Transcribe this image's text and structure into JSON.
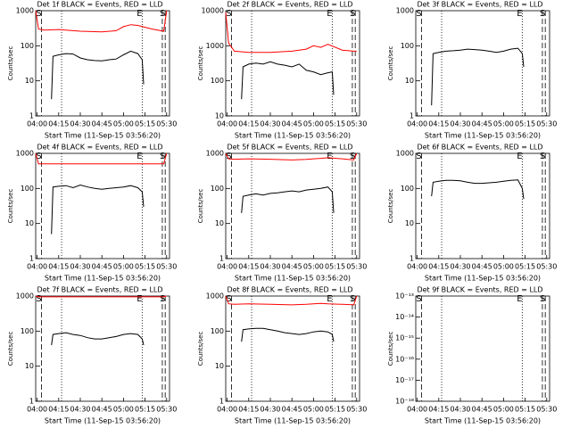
{
  "chart_data": [
    {
      "type": "line",
      "title": "Det 1f BLACK = Events, RED = LLD",
      "xlabel": "Start Time (11-Sep-15 03:56:20)",
      "ylabel": "Counts/sec",
      "log_y": true,
      "xlim": [
        "03:59",
        "05:32"
      ],
      "xticks": [
        "04:00",
        "04:15",
        "04:30",
        "04:45",
        "05:00",
        "05:15",
        "05:30"
      ],
      "ylim": [
        1,
        1000
      ],
      "yticks": [
        1,
        10,
        100,
        1000
      ],
      "vlines": [
        {
          "x": "04:03",
          "style": "dashed",
          "label": "S"
        },
        {
          "x": "04:17",
          "style": "dotted"
        },
        {
          "x": "05:13",
          "style": "dotted",
          "label": "E"
        },
        {
          "x": "05:27",
          "style": "dashed"
        },
        {
          "x": "05:29",
          "style": "dashed",
          "label": "S"
        }
      ],
      "series": [
        {
          "color": "#000000",
          "x": [
            "04:10",
            "04:11",
            "04:15",
            "04:20",
            "04:25",
            "04:30",
            "04:35",
            "04:40",
            "04:45",
            "04:50",
            "04:55",
            "05:00",
            "05:05",
            "05:10",
            "05:13",
            "05:14"
          ],
          "values": [
            3,
            50,
            55,
            60,
            58,
            45,
            40,
            38,
            37,
            40,
            42,
            55,
            70,
            60,
            40,
            8
          ]
        },
        {
          "color": "#ff0000",
          "x": [
            "03:59",
            "04:01",
            "04:05",
            "04:15",
            "04:30",
            "04:45",
            "04:55",
            "05:00",
            "05:05",
            "05:10",
            "05:20",
            "05:28",
            "05:30"
          ],
          "values": [
            1000,
            300,
            280,
            290,
            260,
            250,
            270,
            350,
            400,
            380,
            300,
            260,
            1000
          ]
        }
      ]
    },
    {
      "type": "line",
      "title": "Det 2f BLACK = Events, RED = LLD",
      "xlabel": "Start Time (11-Sep-15 03:56:20)",
      "ylabel": "Counts/sec",
      "log_y": true,
      "xlim": [
        "03:59",
        "05:32"
      ],
      "xticks": [
        "04:00",
        "04:15",
        "04:30",
        "04:45",
        "05:00",
        "05:15",
        "05:30"
      ],
      "ylim": [
        10,
        10000
      ],
      "yticks": [
        10,
        100,
        1000,
        10000
      ],
      "vlines": [
        {
          "x": "04:03",
          "style": "dashed",
          "label": "S"
        },
        {
          "x": "04:17",
          "style": "dotted"
        },
        {
          "x": "05:13",
          "style": "dotted",
          "label": "E"
        },
        {
          "x": "05:27",
          "style": "dashed"
        },
        {
          "x": "05:29",
          "style": "dashed",
          "label": "S"
        }
      ],
      "series": [
        {
          "color": "#000000",
          "x": [
            "04:10",
            "04:11",
            "04:15",
            "04:20",
            "04:25",
            "04:30",
            "04:35",
            "04:40",
            "04:45",
            "04:50",
            "04:55",
            "05:00",
            "05:05",
            "05:10",
            "05:13",
            "05:14"
          ],
          "values": [
            30,
            250,
            300,
            320,
            300,
            350,
            300,
            280,
            250,
            300,
            200,
            180,
            150,
            170,
            180,
            40
          ]
        },
        {
          "color": "#ff0000",
          "x": [
            "03:59",
            "04:01",
            "04:05",
            "04:15",
            "04:30",
            "04:45",
            "04:55",
            "05:00",
            "05:05",
            "05:10",
            "05:20",
            "05:28",
            "05:30"
          ],
          "values": [
            9000,
            1200,
            700,
            650,
            650,
            700,
            800,
            1000,
            900,
            1100,
            750,
            700,
            700
          ]
        }
      ]
    },
    {
      "type": "line",
      "title": "Det 3f BLACK = Events, RED = LLD",
      "xlabel": "Start Time (11-Sep-15 03:56:20)",
      "ylabel": "Counts/sec",
      "log_y": true,
      "xlim": [
        "03:59",
        "05:32"
      ],
      "xticks": [
        "04:00",
        "04:15",
        "04:30",
        "04:45",
        "05:00",
        "05:15",
        "05:30"
      ],
      "ylim": [
        1,
        1000
      ],
      "yticks": [
        1,
        10,
        100,
        1000
      ],
      "vlines": [
        {
          "x": "04:03",
          "style": "dashed",
          "label": "S"
        },
        {
          "x": "04:17",
          "style": "dotted"
        },
        {
          "x": "05:13",
          "style": "dotted",
          "label": "E"
        },
        {
          "x": "05:27",
          "style": "dashed"
        },
        {
          "x": "05:29",
          "style": "dashed",
          "label": "S"
        }
      ],
      "series": [
        {
          "color": "#000000",
          "x": [
            "04:10",
            "04:11",
            "04:15",
            "04:20",
            "04:25",
            "04:30",
            "04:35",
            "04:40",
            "04:45",
            "04:50",
            "04:55",
            "05:00",
            "05:05",
            "05:10",
            "05:13",
            "05:14"
          ],
          "values": [
            2,
            60,
            65,
            70,
            72,
            75,
            80,
            78,
            75,
            70,
            65,
            70,
            80,
            85,
            60,
            25
          ]
        }
      ]
    },
    {
      "type": "line",
      "title": "Det 4f BLACK = Events, RED = LLD",
      "xlabel": "Start Time (11-Sep-15 03:56:20)",
      "ylabel": "Counts/sec",
      "log_y": true,
      "xlim": [
        "03:59",
        "05:32"
      ],
      "xticks": [
        "04:00",
        "04:15",
        "04:30",
        "04:45",
        "05:00",
        "05:15",
        "05:30"
      ],
      "ylim": [
        1,
        1000
      ],
      "yticks": [
        1,
        10,
        100,
        1000
      ],
      "vlines": [
        {
          "x": "04:03",
          "style": "dashed",
          "label": "S"
        },
        {
          "x": "04:17",
          "style": "dotted"
        },
        {
          "x": "05:13",
          "style": "dotted",
          "label": "E"
        },
        {
          "x": "05:27",
          "style": "dashed"
        },
        {
          "x": "05:29",
          "style": "dashed",
          "label": "S"
        }
      ],
      "series": [
        {
          "color": "#000000",
          "x": [
            "04:10",
            "04:11",
            "04:15",
            "04:20",
            "04:25",
            "04:30",
            "04:35",
            "04:40",
            "04:45",
            "04:50",
            "04:55",
            "05:00",
            "05:05",
            "05:10",
            "05:13",
            "05:14"
          ],
          "values": [
            5,
            110,
            115,
            120,
            105,
            125,
            110,
            100,
            95,
            100,
            105,
            110,
            120,
            105,
            80,
            30
          ]
        },
        {
          "color": "#ff0000",
          "x": [
            "03:59",
            "04:01",
            "04:05",
            "04:15",
            "04:30",
            "04:45",
            "04:55",
            "05:00",
            "05:05",
            "05:10",
            "05:20",
            "05:28",
            "05:30"
          ],
          "values": [
            1000,
            500,
            500,
            500,
            500,
            500,
            500,
            500,
            500,
            500,
            500,
            500,
            1000
          ]
        }
      ]
    },
    {
      "type": "line",
      "title": "Det 5f BLACK = Events, RED = LLD",
      "xlabel": "Start Time (11-Sep-15 03:56:20)",
      "ylabel": "Counts/sec",
      "log_y": true,
      "xlim": [
        "03:59",
        "05:32"
      ],
      "xticks": [
        "04:00",
        "04:15",
        "04:30",
        "04:45",
        "05:00",
        "05:15",
        "05:30"
      ],
      "ylim": [
        1,
        1000
      ],
      "yticks": [
        1,
        10,
        100,
        1000
      ],
      "vlines": [
        {
          "x": "04:03",
          "style": "dashed",
          "label": "S"
        },
        {
          "x": "04:17",
          "style": "dotted"
        },
        {
          "x": "05:13",
          "style": "dotted",
          "label": "E"
        },
        {
          "x": "05:27",
          "style": "dashed"
        },
        {
          "x": "05:29",
          "style": "dashed",
          "label": "S"
        }
      ],
      "series": [
        {
          "color": "#000000",
          "x": [
            "04:10",
            "04:11",
            "04:15",
            "04:20",
            "04:25",
            "04:30",
            "04:35",
            "04:40",
            "04:45",
            "04:50",
            "04:55",
            "05:00",
            "05:05",
            "05:10",
            "05:13",
            "05:14"
          ],
          "values": [
            20,
            60,
            65,
            70,
            65,
            72,
            75,
            80,
            85,
            80,
            90,
            95,
            100,
            110,
            80,
            20
          ]
        },
        {
          "color": "#ff0000",
          "x": [
            "03:59",
            "04:01",
            "04:05",
            "04:15",
            "04:30",
            "04:45",
            "04:55",
            "05:00",
            "05:05",
            "05:10",
            "05:20",
            "05:28",
            "05:30"
          ],
          "values": [
            1000,
            700,
            680,
            700,
            680,
            650,
            670,
            700,
            720,
            750,
            700,
            650,
            1000
          ]
        }
      ]
    },
    {
      "type": "line",
      "title": "Det 6f BLACK = Events, RED = LLD",
      "xlabel": "Start Time (11-Sep-15 03:56:20)",
      "ylabel": "Counts/sec",
      "log_y": true,
      "xlim": [
        "03:59",
        "05:32"
      ],
      "xticks": [
        "04:00",
        "04:15",
        "04:30",
        "04:45",
        "05:00",
        "05:15",
        "05:30"
      ],
      "ylim": [
        1,
        1000
      ],
      "yticks": [
        1,
        10,
        100,
        1000
      ],
      "vlines": [
        {
          "x": "04:03",
          "style": "dashed",
          "label": "S"
        },
        {
          "x": "04:17",
          "style": "dotted"
        },
        {
          "x": "05:13",
          "style": "dotted",
          "label": "E"
        },
        {
          "x": "05:27",
          "style": "dashed"
        },
        {
          "x": "05:29",
          "style": "dashed",
          "label": "S"
        }
      ],
      "series": [
        {
          "color": "#000000",
          "x": [
            "04:10",
            "04:11",
            "04:15",
            "04:20",
            "04:25",
            "04:30",
            "04:35",
            "04:40",
            "04:45",
            "04:50",
            "04:55",
            "05:00",
            "05:05",
            "05:10",
            "05:13",
            "05:14"
          ],
          "values": [
            60,
            150,
            160,
            170,
            170,
            165,
            150,
            140,
            140,
            145,
            150,
            160,
            170,
            175,
            100,
            50
          ]
        }
      ]
    },
    {
      "type": "line",
      "title": "Det 7f BLACK = Events, RED = LLD",
      "xlabel": "Start Time (11-Sep-15 03:56:20)",
      "ylabel": "Counts/sec",
      "log_y": true,
      "xlim": [
        "03:59",
        "05:32"
      ],
      "xticks": [
        "04:00",
        "04:15",
        "04:30",
        "04:45",
        "05:00",
        "05:15",
        "05:30"
      ],
      "ylim": [
        1,
        1000
      ],
      "yticks": [
        1,
        10,
        100,
        1000
      ],
      "vlines": [
        {
          "x": "04:03",
          "style": "dashed",
          "label": "S"
        },
        {
          "x": "04:17",
          "style": "dotted"
        },
        {
          "x": "05:13",
          "style": "dotted",
          "label": "E"
        },
        {
          "x": "05:27",
          "style": "dashed"
        },
        {
          "x": "05:29",
          "style": "dashed",
          "label": "S"
        }
      ],
      "series": [
        {
          "color": "#000000",
          "x": [
            "04:10",
            "04:11",
            "04:15",
            "04:20",
            "04:25",
            "04:30",
            "04:35",
            "04:40",
            "04:45",
            "04:50",
            "04:55",
            "05:00",
            "05:05",
            "05:10",
            "05:13",
            "05:14"
          ],
          "values": [
            40,
            80,
            85,
            90,
            80,
            75,
            65,
            60,
            60,
            65,
            70,
            80,
            85,
            80,
            60,
            40
          ]
        },
        {
          "color": "#ff0000",
          "x": [
            "03:59",
            "04:01",
            "04:05",
            "04:15",
            "04:30",
            "04:45",
            "04:55",
            "05:00",
            "05:05",
            "05:10",
            "05:20",
            "05:28",
            "05:30"
          ],
          "values": [
            1000,
            950,
            950,
            950,
            950,
            950,
            950,
            950,
            950,
            950,
            950,
            950,
            1000
          ]
        }
      ]
    },
    {
      "type": "line",
      "title": "Det 8f BLACK = Events, RED = LLD",
      "xlabel": "Start Time (11-Sep-15 03:56:20)",
      "ylabel": "Counts/sec",
      "log_y": true,
      "xlim": [
        "03:59",
        "05:32"
      ],
      "xticks": [
        "04:00",
        "04:15",
        "04:30",
        "04:45",
        "05:00",
        "05:15",
        "05:30"
      ],
      "ylim": [
        1,
        1000
      ],
      "yticks": [
        1,
        10,
        100,
        1000
      ],
      "vlines": [
        {
          "x": "04:03",
          "style": "dashed",
          "label": "S"
        },
        {
          "x": "04:17",
          "style": "dotted"
        },
        {
          "x": "05:13",
          "style": "dotted",
          "label": "E"
        },
        {
          "x": "05:27",
          "style": "dashed"
        },
        {
          "x": "05:29",
          "style": "dashed",
          "label": "S"
        }
      ],
      "series": [
        {
          "color": "#000000",
          "x": [
            "04:10",
            "04:11",
            "04:15",
            "04:20",
            "04:25",
            "04:30",
            "04:35",
            "04:40",
            "04:45",
            "04:50",
            "04:55",
            "05:00",
            "05:05",
            "05:10",
            "05:13",
            "05:14"
          ],
          "values": [
            50,
            110,
            115,
            120,
            120,
            110,
            100,
            90,
            85,
            80,
            85,
            95,
            100,
            95,
            80,
            50
          ]
        },
        {
          "color": "#ff0000",
          "x": [
            "03:59",
            "04:01",
            "04:05",
            "04:15",
            "04:30",
            "04:45",
            "04:55",
            "05:00",
            "05:05",
            "05:10",
            "05:20",
            "05:28",
            "05:30"
          ],
          "values": [
            1000,
            600,
            580,
            600,
            580,
            560,
            580,
            600,
            620,
            600,
            580,
            560,
            1000
          ]
        }
      ]
    },
    {
      "type": "line",
      "title": "Det 9f BLACK = Events, RED = LLD",
      "xlabel": "Start Time (11-Sep-15 03:56:20)",
      "ylabel": "Counts/sec",
      "log_y": true,
      "xlim": [
        "03:59",
        "05:32"
      ],
      "xticks": [
        "04:00",
        "04:15",
        "04:30",
        "04:45",
        "05:00",
        "05:15",
        "05:30"
      ],
      "ylim": [
        1e-18,
        1e-13
      ],
      "yticks": [
        {
          "value": 1e-18,
          "label": "10⁻¹⁸"
        },
        {
          "value": 1e-17,
          "label": "10⁻¹⁷"
        },
        {
          "value": 1e-16,
          "label": "10⁻¹⁶"
        },
        {
          "value": 1e-15,
          "label": "10⁻¹⁵"
        },
        {
          "value": 1e-14,
          "label": "10⁻¹⁴"
        },
        {
          "value": 1e-13,
          "label": "10⁻¹³"
        }
      ],
      "vlines": [
        {
          "x": "04:03",
          "style": "dashed",
          "label": "S"
        },
        {
          "x": "04:17",
          "style": "dotted"
        },
        {
          "x": "05:13",
          "style": "dotted",
          "label": "E"
        },
        {
          "x": "05:27",
          "style": "dashed"
        },
        {
          "x": "05:29",
          "style": "dashed",
          "label": "S"
        }
      ],
      "series": []
    }
  ]
}
